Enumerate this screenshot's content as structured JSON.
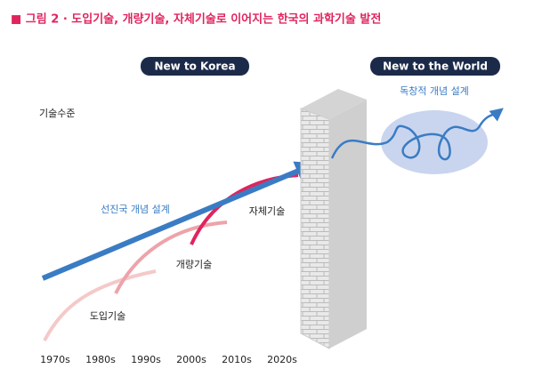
{
  "header": {
    "title": "■ 그림 2 · 도입기술, 개량기술, 자체기술로 이어지는 한국의 과학기술 발전"
  },
  "badges": [
    "New to Korea",
    "New to the World"
  ],
  "labels": {
    "world_design": "독창적 개념 설계",
    "y_axis": "기술수준",
    "advanced_design": "선진국 개념 설계",
    "own_tech": "자체기술",
    "improved_tech": "개량기술",
    "imported_tech": "도입기술"
  },
  "decades": [
    "1970s",
    "1980s",
    "1990s",
    "2000s",
    "2010s",
    "2020s"
  ]
}
